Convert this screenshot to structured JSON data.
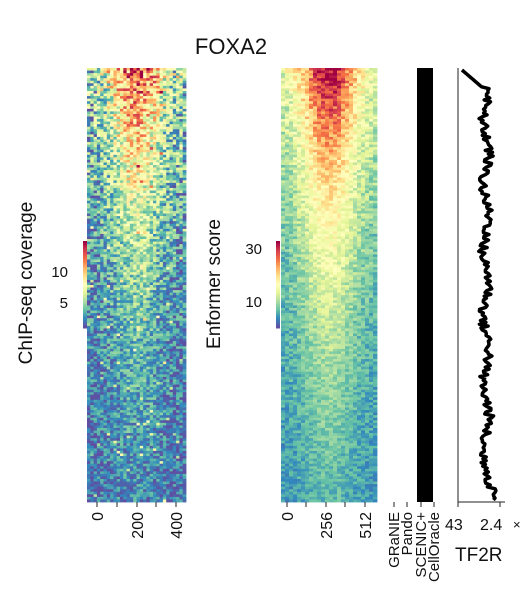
{
  "chart_data": [
    {
      "type": "heatmap",
      "title": "FOXA2",
      "panel": "chipseq",
      "ylabel": "ChIP-seq coverage",
      "x_ticks": [
        "0",
        "200",
        "400"
      ],
      "colorbar": {
        "ticks": [
          "10",
          "5"
        ],
        "range": [
          0,
          14
        ],
        "colormap": "Spectral_r"
      },
      "grid": false
    },
    {
      "type": "heatmap",
      "panel": "enformer",
      "ylabel": "Enformer score",
      "x_ticks": [
        "0",
        "256",
        "512"
      ],
      "colorbar": {
        "ticks": [
          "30",
          "10"
        ],
        "range": [
          0,
          40
        ],
        "colormap": "Spectral_r"
      },
      "grid": false
    },
    {
      "type": "heatmap",
      "panel": "methods",
      "x_ticks": [
        "GRaNIE",
        "Pando",
        "SCENIC+",
        "CellOracle"
      ],
      "fill_color": "#000000"
    },
    {
      "type": "line",
      "panel": "tf2r",
      "xlabel": "TF2R",
      "x_ticks": [
        "43",
        "2.4"
      ],
      "x_multiplier_mark": "×",
      "line_color": "#000000"
    }
  ]
}
